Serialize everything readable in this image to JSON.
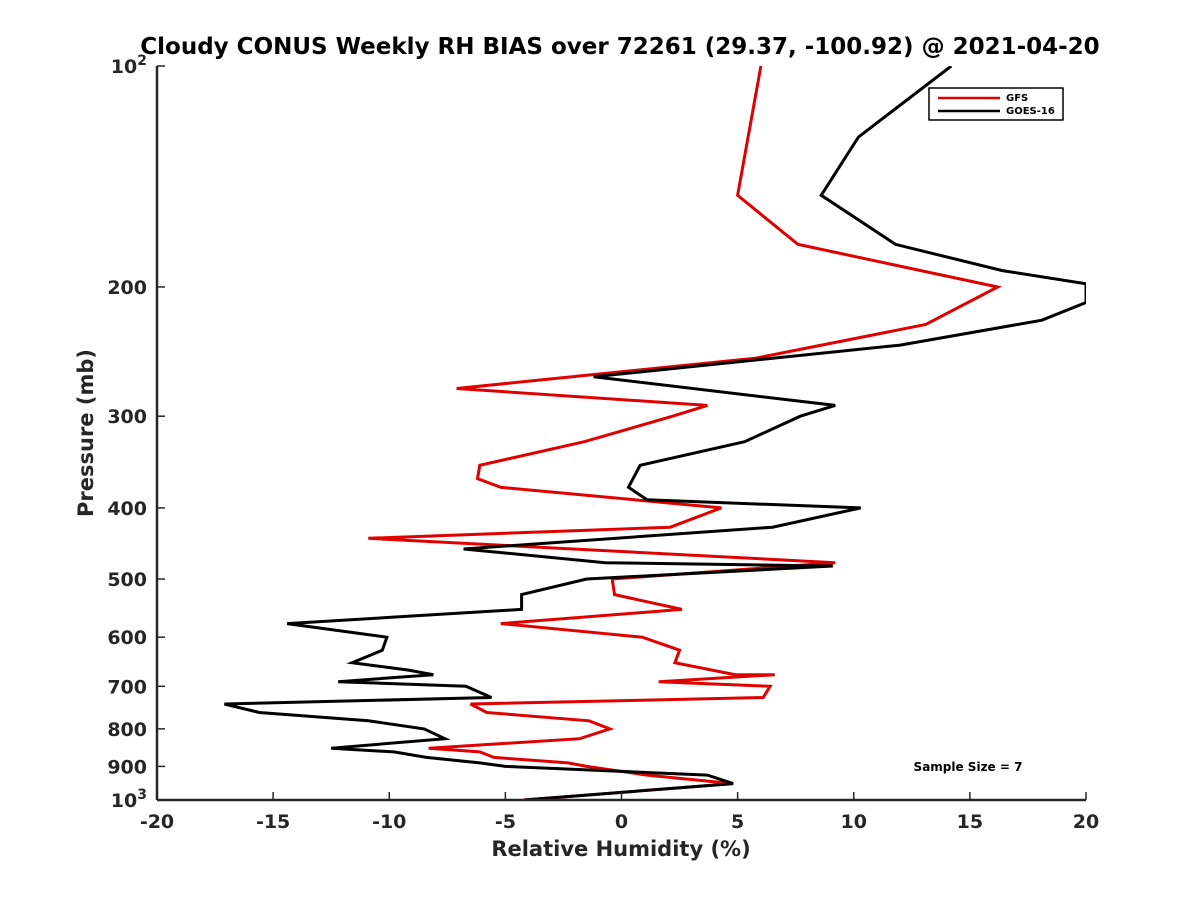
{
  "chart_data": {
    "type": "line",
    "title": "Cloudy CONUS Weekly RH BIAS over 72261 (29.37, -100.92) @ 2021-04-20",
    "xlabel": "Relative Humidity (%)",
    "ylabel": "Pressure (mb)",
    "xlim": [
      -20,
      20
    ],
    "ylim": [
      100,
      1000
    ],
    "y_scale": "log",
    "y_reversed": true,
    "x_ticks": [
      "-20",
      "-15",
      "-10",
      "-5",
      "0",
      "5",
      "10",
      "15",
      "20"
    ],
    "y_ticks": [
      {
        "value": 100,
        "base": "10",
        "exp": "2"
      },
      {
        "value": 200,
        "label": "200"
      },
      {
        "value": 300,
        "label": "300"
      },
      {
        "value": 400,
        "label": "400"
      },
      {
        "value": 500,
        "label": "500"
      },
      {
        "value": 600,
        "label": "600"
      },
      {
        "value": 700,
        "label": "700"
      },
      {
        "value": 800,
        "label": "800"
      },
      {
        "value": 900,
        "label": "900"
      },
      {
        "value": 1000,
        "base": "10",
        "exp": "3"
      }
    ],
    "grid": false,
    "legend_position": "top-right",
    "annotation": "Sample Size = 7",
    "series": [
      {
        "name": "GFS",
        "color": "#e00000",
        "points": [
          [
            6.0,
            100
          ],
          [
            5.0,
            150
          ],
          [
            7.6,
            175
          ],
          [
            16.2,
            200
          ],
          [
            13.1,
            225
          ],
          [
            5.8,
            250
          ],
          [
            -7.1,
            275
          ],
          [
            3.7,
            290
          ],
          [
            2.2,
            300
          ],
          [
            -1.6,
            325
          ],
          [
            -6.1,
            350
          ],
          [
            -6.2,
            365
          ],
          [
            -5.2,
            375
          ],
          [
            4.3,
            400
          ],
          [
            2.1,
            425
          ],
          [
            -10.9,
            440
          ],
          [
            9.2,
            475
          ],
          [
            -0.4,
            500
          ],
          [
            -0.3,
            525
          ],
          [
            2.6,
            550
          ],
          [
            -5.2,
            575
          ],
          [
            0.9,
            600
          ],
          [
            2.5,
            625
          ],
          [
            2.3,
            650
          ],
          [
            4.9,
            675
          ],
          [
            6.6,
            675
          ],
          [
            1.6,
            690
          ],
          [
            6.4,
            700
          ],
          [
            6.1,
            725
          ],
          [
            -6.5,
            740
          ],
          [
            -5.8,
            760
          ],
          [
            -1.4,
            780
          ],
          [
            -0.5,
            800
          ],
          [
            -1.8,
            825
          ],
          [
            -8.3,
            850
          ],
          [
            -6.1,
            860
          ],
          [
            -5.5,
            875
          ],
          [
            -2.3,
            890
          ],
          [
            -1.5,
            900
          ],
          [
            1.1,
            925
          ],
          [
            4.8,
            950
          ],
          [
            -4.2,
            1000
          ]
        ]
      },
      {
        "name": "GOES-16",
        "color": "#000000",
        "points": [
          [
            14.2,
            100
          ],
          [
            10.2,
            125
          ],
          [
            8.6,
            150
          ],
          [
            11.8,
            175
          ],
          [
            16.4,
            190
          ],
          [
            20.0,
            198
          ],
          [
            20.0,
            210
          ],
          [
            18.1,
            222
          ],
          [
            12.0,
            240
          ],
          [
            -1.2,
            265
          ],
          [
            9.2,
            290
          ],
          [
            7.7,
            300
          ],
          [
            5.3,
            325
          ],
          [
            0.8,
            350
          ],
          [
            0.3,
            375
          ],
          [
            1.1,
            390
          ],
          [
            10.3,
            400
          ],
          [
            6.5,
            425
          ],
          [
            -6.8,
            455
          ],
          [
            -0.7,
            475
          ],
          [
            9.1,
            480
          ],
          [
            -1.5,
            500
          ],
          [
            -4.3,
            525
          ],
          [
            -4.3,
            550
          ],
          [
            -14.4,
            575
          ],
          [
            -10.1,
            600
          ],
          [
            -10.3,
            625
          ],
          [
            -11.6,
            650
          ],
          [
            -9.2,
            665
          ],
          [
            -8.1,
            675
          ],
          [
            -12.2,
            690
          ],
          [
            -6.7,
            700
          ],
          [
            -5.6,
            725
          ],
          [
            -17.1,
            740
          ],
          [
            -15.6,
            760
          ],
          [
            -10.9,
            780
          ],
          [
            -8.5,
            800
          ],
          [
            -7.6,
            825
          ],
          [
            -12.5,
            850
          ],
          [
            -9.8,
            860
          ],
          [
            -8.4,
            875
          ],
          [
            -6.1,
            890
          ],
          [
            -5.0,
            900
          ],
          [
            3.7,
            925
          ],
          [
            4.8,
            950
          ],
          [
            -4.2,
            1000
          ]
        ]
      }
    ]
  }
}
